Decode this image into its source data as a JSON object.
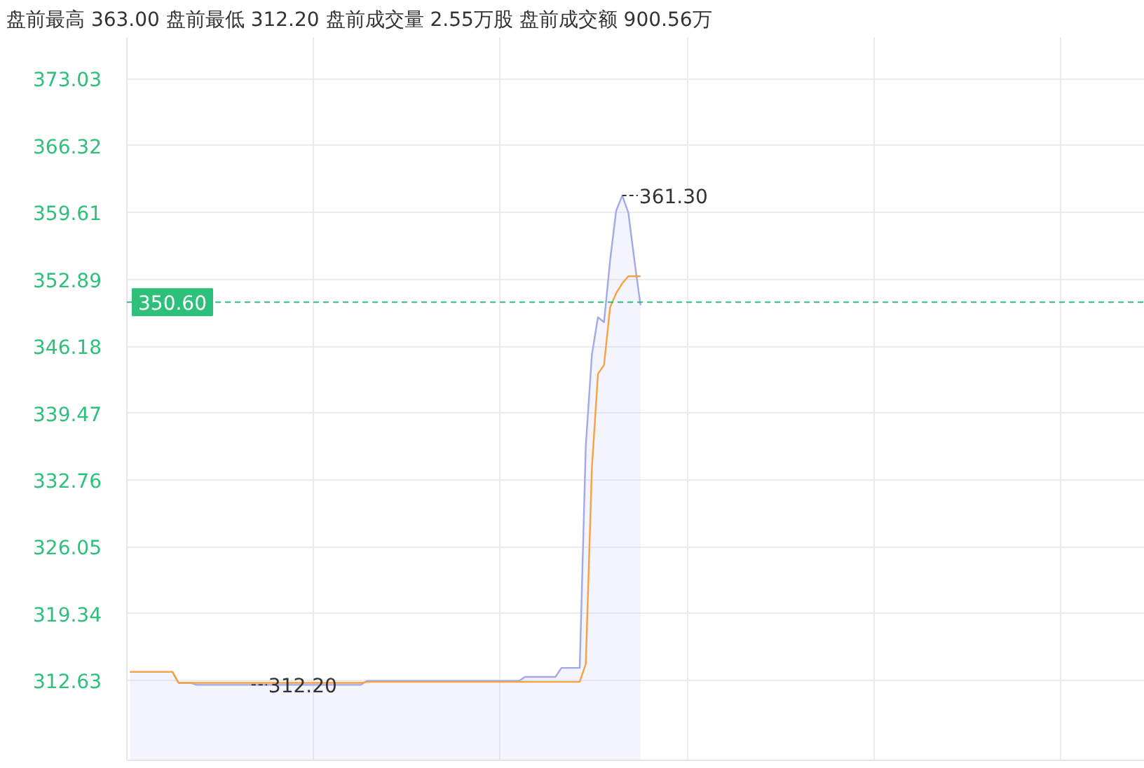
{
  "chart_data": {
    "type": "area",
    "title": "盘前最高 363.00 盘前最低 312.20 盘前成交量 2.55万股 盘前成交额 900.56万",
    "categories": [
      null,
      null,
      null,
      null,
      null,
      null,
      null,
      null,
      null,
      null,
      null,
      null,
      null,
      null,
      null,
      null,
      null,
      null,
      null,
      null,
      null,
      null,
      null,
      null,
      null,
      null,
      null,
      null,
      null,
      null,
      null,
      null,
      null,
      null,
      null,
      null,
      null,
      null,
      null,
      null,
      null,
      null,
      null,
      null,
      null,
      null,
      null,
      null,
      null,
      null,
      null,
      null,
      null,
      null,
      null,
      null,
      null,
      null,
      null,
      null,
      null,
      null,
      null,
      null,
      null,
      null,
      null,
      null,
      null,
      null,
      null,
      null,
      null,
      null,
      null,
      null,
      null,
      null,
      null,
      null,
      null,
      null,
      null,
      null,
      null
    ],
    "series": [
      {
        "color": "#a3a8e8",
        "value_labels": [
          null,
          null,
          null,
          null,
          null,
          null,
          null,
          null,
          null,
          null,
          null,
          null,
          null,
          null,
          null,
          null,
          null,
          null,
          null,
          null,
          "312.20",
          null,
          null,
          null,
          null,
          null,
          null,
          null,
          null,
          null,
          null,
          null,
          null,
          null,
          null,
          null,
          null,
          null,
          null,
          null,
          null,
          null,
          null,
          null,
          null,
          null,
          null,
          null,
          null,
          null,
          null,
          null,
          null,
          null,
          null,
          null,
          null,
          null,
          null,
          null,
          null,
          null,
          null,
          null,
          null,
          null,
          null,
          null,
          null,
          null,
          null,
          null,
          null,
          null,
          null,
          null,
          null,
          null,
          null,
          null,
          null,
          "361.30",
          null,
          null,
          null
        ],
        "values": [
          313.5,
          313.5,
          313.5,
          313.5,
          313.5,
          313.5,
          313.5,
          313.5,
          312.4,
          312.4,
          312.4,
          312.2,
          312.2,
          312.2,
          312.2,
          312.2,
          312.2,
          312.2,
          312.2,
          312.2,
          312.2,
          312.2,
          312.2,
          312.2,
          312.2,
          312.2,
          312.2,
          312.2,
          312.2,
          312.2,
          312.2,
          312.2,
          312.2,
          312.2,
          312.2,
          312.2,
          312.2,
          312.2,
          312.2,
          312.6,
          312.6,
          312.6,
          312.6,
          312.6,
          312.6,
          312.6,
          312.6,
          312.6,
          312.6,
          312.6,
          312.6,
          312.6,
          312.6,
          312.6,
          312.6,
          312.6,
          312.6,
          312.6,
          312.6,
          312.6,
          312.6,
          312.6,
          312.6,
          312.6,
          312.6,
          313.0,
          313.0,
          313.0,
          313.0,
          313.0,
          313.0,
          313.9,
          313.9,
          313.9,
          313.9,
          336.2,
          345.3,
          349.1,
          348.6,
          354.8,
          359.8,
          361.3,
          359.6,
          354.8,
          350.3
        ]
      },
      {
        "type": "line",
        "color": "#f7a044",
        "values": [
          313.5,
          313.5,
          313.5,
          313.5,
          313.5,
          313.5,
          313.5,
          313.5,
          312.4,
          312.4,
          312.4,
          312.4,
          312.4,
          312.4,
          312.4,
          312.4,
          312.4,
          312.4,
          312.4,
          312.4,
          312.4,
          312.4,
          312.4,
          312.4,
          312.4,
          312.4,
          312.4,
          312.4,
          312.4,
          312.4,
          312.4,
          312.4,
          312.4,
          312.4,
          312.4,
          312.4,
          312.4,
          312.4,
          312.4,
          312.5,
          312.5,
          312.5,
          312.5,
          312.5,
          312.5,
          312.5,
          312.5,
          312.5,
          312.5,
          312.5,
          312.5,
          312.5,
          312.5,
          312.5,
          312.5,
          312.5,
          312.5,
          312.5,
          312.5,
          312.5,
          312.5,
          312.5,
          312.5,
          312.5,
          312.5,
          312.5,
          312.5,
          312.5,
          312.5,
          312.5,
          312.5,
          312.5,
          312.5,
          312.5,
          312.5,
          314.3,
          333.9,
          343.4,
          344.3,
          350.1,
          351.5,
          352.5,
          353.2,
          353.2,
          353.2
        ]
      }
    ],
    "ref_lines": [
      {
        "axis": "y",
        "value": 350.6,
        "label": "350.60",
        "color": "#2ec07a",
        "line_style": "dashed"
      }
    ],
    "ylim": [
      304.63,
      377.2
    ],
    "yticks": [
      312.63,
      319.34,
      326.05,
      332.76,
      339.47,
      346.18,
      352.89,
      359.61,
      366.32,
      373.03
    ],
    "tick_labels": "y",
    "grid": true
  }
}
